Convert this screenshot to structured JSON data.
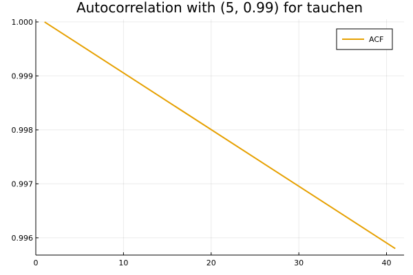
{
  "chart_data": {
    "type": "line",
    "title": "Autocorrelation with (5, 0.99) for tauchen",
    "xlabel": "",
    "ylabel": "",
    "xlim": [
      0,
      42
    ],
    "ylim": [
      0.99568,
      1.00005
    ],
    "x_ticks": [
      0,
      10,
      20,
      30,
      40
    ],
    "y_ticks": [
      0.996,
      0.997,
      0.998,
      0.999,
      1.0
    ],
    "x_tick_labels": [
      "0",
      "10",
      "20",
      "30",
      "40"
    ],
    "y_tick_labels": [
      "0.996",
      "0.997",
      "0.998",
      "0.999",
      "1.000"
    ],
    "grid": true,
    "legend_position": "top-right",
    "series": [
      {
        "name": "ACF",
        "color": "#e6a000",
        "x": [
          1,
          41
        ],
        "y": [
          1.0,
          0.9958
        ]
      }
    ]
  }
}
